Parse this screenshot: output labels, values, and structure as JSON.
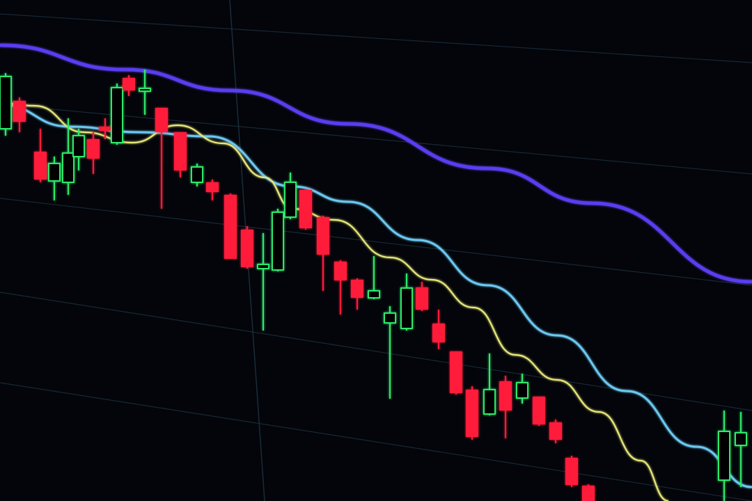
{
  "colors": {
    "background": "#03050a",
    "bearish_candle": "#ff1f3a",
    "bullish_candle": "#2ee86a",
    "slow_average": "#5a3cf0",
    "medium_average": "#6cc8f0",
    "fast_average": "#e8e87a",
    "grid": "#1c3140"
  }
}
